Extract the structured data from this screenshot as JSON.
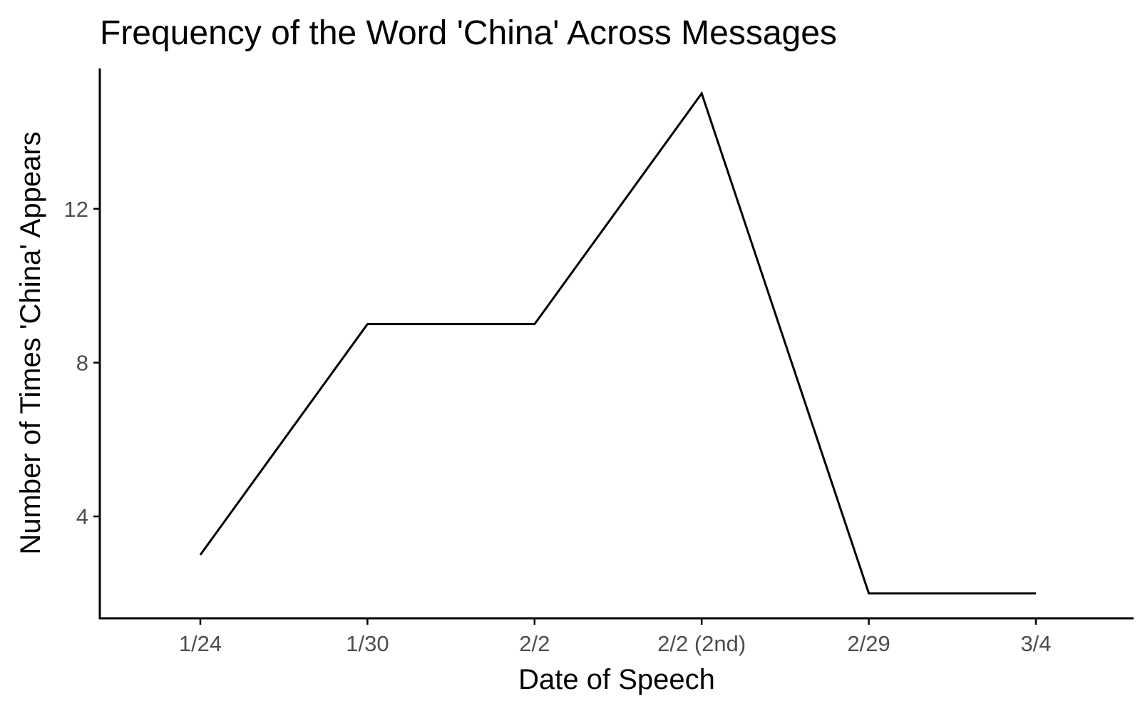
{
  "chart_data": {
    "type": "line",
    "title": "Frequency of the Word 'China' Across Messages",
    "xlabel": "Date of Speech",
    "ylabel": "Number of Times 'China' Appears",
    "categories": [
      "1/24",
      "1/30",
      "2/2",
      "2/2 (2nd)",
      "2/29",
      "3/4"
    ],
    "series": [
      {
        "values": [
          3,
          9,
          9,
          15,
          2,
          2
        ]
      }
    ],
    "yticks": [
      4,
      8,
      12
    ],
    "ylim": [
      1.35,
      15.65
    ],
    "grid": false,
    "legend": "none",
    "colors": {
      "line": "#000000",
      "axis": "#000000",
      "tick_text": "#4d4d4d",
      "background": "#ffffff"
    }
  }
}
